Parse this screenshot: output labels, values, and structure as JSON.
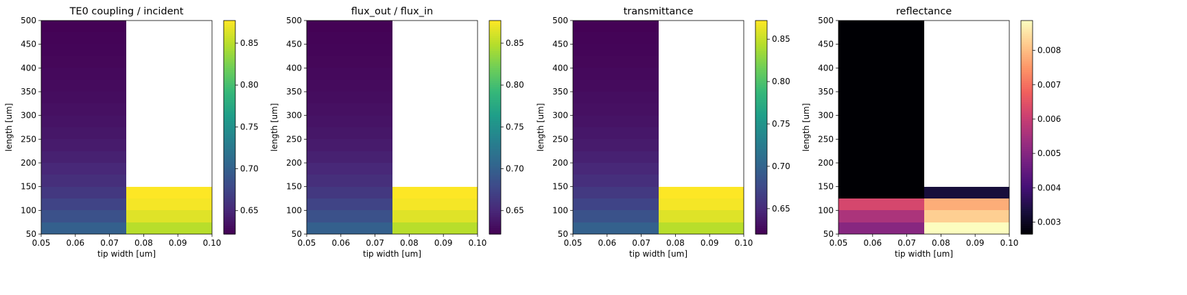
{
  "colors": {
    "viridis": [
      "#440154",
      "#482878",
      "#3e4989",
      "#31688e",
      "#26828e",
      "#1f9e89",
      "#35b779",
      "#6ece58",
      "#b5de2b",
      "#fde725"
    ],
    "magma": [
      "#000004",
      "#180f3e",
      "#451077",
      "#721f81",
      "#9f2f7f",
      "#cd4071",
      "#f1605d",
      "#fd9567",
      "#feca8d",
      "#fcfdbf"
    ],
    "nan": "#ffffff"
  },
  "chart_data": [
    {
      "type": "heatmap",
      "title": "TE0 coupling / incident",
      "xlabel": "tip width [um]",
      "ylabel": "length [um]",
      "xlim": [
        0.05,
        0.1
      ],
      "ylim": [
        50,
        500
      ],
      "x_centers": [
        0.0625,
        0.0875
      ],
      "y_centers": [
        62.5,
        87.5,
        112.5,
        137.5,
        162.5,
        187.5,
        212.5,
        237.5,
        262.5,
        287.5,
        312.5,
        337.5,
        362.5,
        387.5,
        412.5,
        437.5,
        462.5,
        487.5
      ],
      "x_ticks": [
        "0.05",
        "0.06",
        "0.07",
        "0.08",
        "0.09",
        "0.10"
      ],
      "y_ticks": [
        "50",
        "100",
        "150",
        "200",
        "250",
        "300",
        "350",
        "400",
        "450",
        "500"
      ],
      "colormap": "viridis",
      "colorbar_range": [
        0.622,
        0.877
      ],
      "colorbar_ticks": [
        "0.65",
        "0.70",
        "0.75",
        "0.80",
        "0.85"
      ],
      "colorbar_tick_values": [
        0.65,
        0.7,
        0.75,
        0.8,
        0.85
      ],
      "columns": [
        [
          0.7,
          0.686,
          0.674,
          0.664,
          0.656,
          0.65,
          0.645,
          0.641,
          0.638,
          0.635,
          0.633,
          0.631,
          0.629,
          0.628,
          0.626,
          0.625,
          0.624,
          0.623
        ],
        [
          0.85,
          0.865,
          0.874,
          0.877,
          null,
          null,
          null,
          null,
          null,
          null,
          null,
          null,
          null,
          null,
          null,
          null,
          null,
          null
        ]
      ]
    },
    {
      "type": "heatmap",
      "title": "flux_out / flux_in",
      "xlabel": "tip width [um]",
      "ylabel": "length [um]",
      "xlim": [
        0.05,
        0.1
      ],
      "ylim": [
        50,
        500
      ],
      "x_centers": [
        0.0625,
        0.0875
      ],
      "y_centers": [
        62.5,
        87.5,
        112.5,
        137.5,
        162.5,
        187.5,
        212.5,
        237.5,
        262.5,
        287.5,
        312.5,
        337.5,
        362.5,
        387.5,
        412.5,
        437.5,
        462.5,
        487.5
      ],
      "x_ticks": [
        "0.05",
        "0.06",
        "0.07",
        "0.08",
        "0.09",
        "0.10"
      ],
      "y_ticks": [
        "50",
        "100",
        "150",
        "200",
        "250",
        "300",
        "350",
        "400",
        "450",
        "500"
      ],
      "colormap": "viridis",
      "colorbar_range": [
        0.622,
        0.877
      ],
      "colorbar_ticks": [
        "0.65",
        "0.70",
        "0.75",
        "0.80",
        "0.85"
      ],
      "colorbar_tick_values": [
        0.65,
        0.7,
        0.75,
        0.8,
        0.85
      ],
      "columns": [
        [
          0.7,
          0.686,
          0.674,
          0.664,
          0.656,
          0.65,
          0.645,
          0.641,
          0.638,
          0.635,
          0.633,
          0.631,
          0.629,
          0.628,
          0.626,
          0.625,
          0.624,
          0.623
        ],
        [
          0.85,
          0.865,
          0.874,
          0.877,
          null,
          null,
          null,
          null,
          null,
          null,
          null,
          null,
          null,
          null,
          null,
          null,
          null,
          null
        ]
      ]
    },
    {
      "type": "heatmap",
      "title": "transmittance",
      "xlabel": "tip width [um]",
      "ylabel": "length [um]",
      "xlim": [
        0.05,
        0.1
      ],
      "ylim": [
        50,
        500
      ],
      "x_centers": [
        0.0625,
        0.0875
      ],
      "y_centers": [
        62.5,
        87.5,
        112.5,
        137.5,
        162.5,
        187.5,
        212.5,
        237.5,
        262.5,
        287.5,
        312.5,
        337.5,
        362.5,
        387.5,
        412.5,
        437.5,
        462.5,
        487.5
      ],
      "x_ticks": [
        "0.05",
        "0.06",
        "0.07",
        "0.08",
        "0.09",
        "0.10"
      ],
      "y_ticks": [
        "50",
        "100",
        "150",
        "200",
        "250",
        "300",
        "350",
        "400",
        "450",
        "500"
      ],
      "colormap": "viridis",
      "colorbar_range": [
        0.62,
        0.872
      ],
      "colorbar_ticks": [
        "0.65",
        "0.70",
        "0.75",
        "0.80",
        "0.85"
      ],
      "colorbar_tick_values": [
        0.65,
        0.7,
        0.75,
        0.8,
        0.85
      ],
      "columns": [
        [
          0.698,
          0.684,
          0.672,
          0.662,
          0.654,
          0.648,
          0.643,
          0.639,
          0.636,
          0.633,
          0.631,
          0.629,
          0.627,
          0.626,
          0.624,
          0.623,
          0.622,
          0.621
        ],
        [
          0.845,
          0.86,
          0.869,
          0.872,
          null,
          null,
          null,
          null,
          null,
          null,
          null,
          null,
          null,
          null,
          null,
          null,
          null,
          null
        ]
      ]
    },
    {
      "type": "heatmap",
      "title": "reflectance",
      "xlabel": "tip width [um]",
      "ylabel": "length [um]",
      "xlim": [
        0.05,
        0.1
      ],
      "ylim": [
        50,
        500
      ],
      "x_centers": [
        0.0625,
        0.0875
      ],
      "y_centers": [
        62.5,
        87.5,
        112.5,
        137.5,
        162.5,
        187.5,
        212.5,
        237.5,
        262.5,
        287.5,
        312.5,
        337.5,
        362.5,
        387.5,
        412.5,
        437.5,
        462.5,
        487.5
      ],
      "x_ticks": [
        "0.05",
        "0.06",
        "0.07",
        "0.08",
        "0.09",
        "0.10"
      ],
      "y_ticks": [
        "50",
        "100",
        "150",
        "200",
        "250",
        "300",
        "350",
        "400",
        "450",
        "500"
      ],
      "colormap": "magma",
      "colorbar_range": [
        0.00265,
        0.00887
      ],
      "colorbar_ticks": [
        "0.003",
        "0.004",
        "0.005",
        "0.006",
        "0.007",
        "0.008"
      ],
      "colorbar_tick_values": [
        0.003,
        0.004,
        0.005,
        0.006,
        0.007,
        0.008
      ],
      "columns": [
        [
          0.00505,
          0.0056,
          0.00625,
          0.00265,
          0.00265,
          0.00265,
          0.00265,
          0.00265,
          0.00265,
          0.00265,
          0.00265,
          0.00265,
          0.00265,
          0.00265,
          0.00265,
          0.00265,
          0.00265,
          0.00265
        ],
        [
          0.00887,
          0.00825,
          0.0078,
          0.0033,
          null,
          null,
          null,
          null,
          null,
          null,
          null,
          null,
          null,
          null,
          null,
          null,
          null,
          null
        ]
      ]
    }
  ]
}
